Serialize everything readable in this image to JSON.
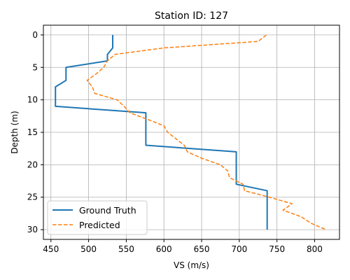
{
  "chart_data": {
    "type": "line",
    "title": "Station ID: 127",
    "xlabel": "VS (m/s)",
    "ylabel": "Depth (m)",
    "xlim": [
      440,
      833
    ],
    "ylim": [
      31.5,
      -1.5
    ],
    "y_inverted": true,
    "grid": true,
    "legend": "lower-left",
    "xticks": [
      450,
      500,
      550,
      600,
      650,
      700,
      750,
      800
    ],
    "yticks": [
      0,
      5,
      10,
      15,
      20,
      25,
      30
    ],
    "series": [
      {
        "name": "Ground Truth",
        "color": "#1f77b4",
        "style": "solid",
        "points": [
          [
            532,
            0
          ],
          [
            532,
            2
          ],
          [
            525,
            3
          ],
          [
            525,
            4
          ],
          [
            470,
            5
          ],
          [
            470,
            7
          ],
          [
            456,
            8
          ],
          [
            456,
            11
          ],
          [
            576,
            12
          ],
          [
            576,
            17
          ],
          [
            696,
            18
          ],
          [
            696,
            23
          ],
          [
            737,
            24
          ],
          [
            737,
            30
          ]
        ]
      },
      {
        "name": "Predicted",
        "color": "#ff7f0e",
        "style": "dashed",
        "points": [
          [
            736,
            0
          ],
          [
            725,
            1
          ],
          [
            600,
            2
          ],
          [
            535,
            3
          ],
          [
            525,
            4
          ],
          [
            520,
            5
          ],
          [
            510,
            6
          ],
          [
            498,
            7
          ],
          [
            505,
            8
          ],
          [
            508,
            9
          ],
          [
            538,
            10
          ],
          [
            547,
            11
          ],
          [
            555,
            12
          ],
          [
            578,
            13
          ],
          [
            600,
            14
          ],
          [
            605,
            15
          ],
          [
            616,
            16
          ],
          [
            627,
            17
          ],
          [
            631,
            18
          ],
          [
            650,
            19
          ],
          [
            675,
            20
          ],
          [
            685,
            21
          ],
          [
            687,
            22
          ],
          [
            705,
            23
          ],
          [
            707,
            24
          ],
          [
            740,
            25
          ],
          [
            770,
            26
          ],
          [
            758,
            27
          ],
          [
            782,
            28
          ],
          [
            795,
            29
          ],
          [
            815,
            30
          ]
        ]
      }
    ]
  }
}
